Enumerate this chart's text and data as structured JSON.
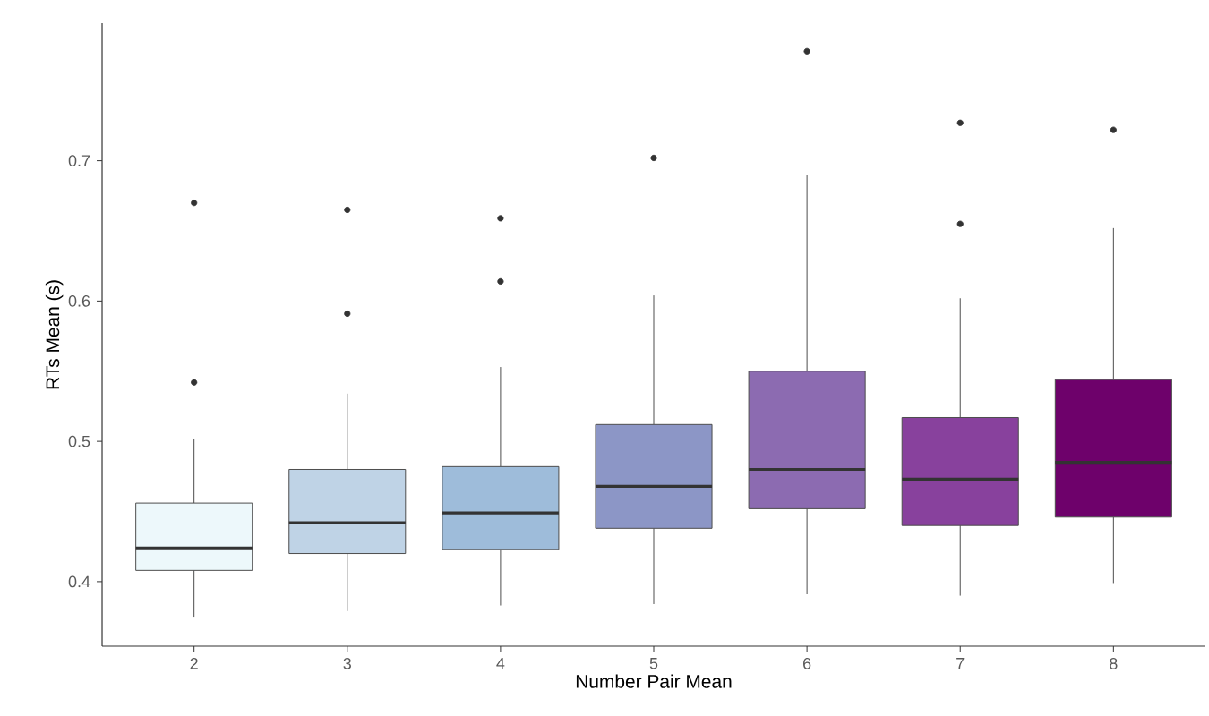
{
  "chart_data": {
    "type": "box",
    "xlabel": "Number Pair Mean",
    "ylabel": "RTs Mean (s)",
    "categories": [
      "2",
      "3",
      "4",
      "5",
      "6",
      "7",
      "8"
    ],
    "colors": [
      "#edf8fb",
      "#bfd3e6",
      "#9ebcda",
      "#8c96c6",
      "#8c6bb1",
      "#88419d",
      "#6e016b"
    ],
    "boxes": [
      {
        "low": 0.375,
        "q1": 0.408,
        "median": 0.424,
        "q3": 0.456,
        "high": 0.502,
        "outliers": [
          0.542,
          0.67
        ]
      },
      {
        "low": 0.379,
        "q1": 0.42,
        "median": 0.442,
        "q3": 0.48,
        "high": 0.534,
        "outliers": [
          0.591,
          0.665
        ]
      },
      {
        "low": 0.383,
        "q1": 0.423,
        "median": 0.449,
        "q3": 0.482,
        "high": 0.553,
        "outliers": [
          0.614,
          0.659
        ]
      },
      {
        "low": 0.384,
        "q1": 0.438,
        "median": 0.468,
        "q3": 0.512,
        "high": 0.604,
        "outliers": [
          0.702
        ]
      },
      {
        "low": 0.391,
        "q1": 0.452,
        "median": 0.48,
        "q3": 0.55,
        "high": 0.69,
        "outliers": [
          0.778
        ]
      },
      {
        "low": 0.39,
        "q1": 0.44,
        "median": 0.473,
        "q3": 0.517,
        "high": 0.602,
        "outliers": [
          0.655,
          0.727
        ]
      },
      {
        "low": 0.399,
        "q1": 0.446,
        "median": 0.485,
        "q3": 0.544,
        "high": 0.652,
        "outliers": [
          0.722
        ]
      }
    ],
    "ylim": [
      0.354,
      0.798
    ],
    "yticks": [
      0.4,
      0.5,
      0.6,
      0.7
    ]
  }
}
